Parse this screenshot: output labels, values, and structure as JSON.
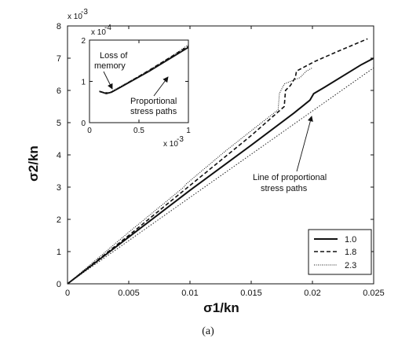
{
  "chart_data": {
    "main": {
      "type": "line",
      "xlabel": "σ1/kn",
      "ylabel": "σ2/kn",
      "xlim": [
        0,
        0.025
      ],
      "ylim": [
        0,
        0.008
      ],
      "xticks": [
        "0",
        "0.005",
        "0.01",
        "0.015",
        "0.02",
        "0.025"
      ],
      "yticks": [
        "0",
        "1",
        "2",
        "3",
        "4",
        "5",
        "6",
        "7",
        "8"
      ],
      "y_multiplier": "x 10",
      "y_exponent": "-3",
      "legend": {
        "placement": "lower-right",
        "entries": [
          "1.0",
          "1.8",
          "2.3"
        ]
      },
      "series": [
        {
          "name": "1.0",
          "style": "solid",
          "points": [
            [
              0,
              0
            ],
            [
              0.005,
              0.00145
            ],
            [
              0.01,
              0.0029
            ],
            [
              0.015,
              0.0043
            ],
            [
              0.0185,
              0.0053
            ],
            [
              0.0198,
              0.0057
            ],
            [
              0.0201,
              0.0059
            ],
            [
              0.021,
              0.0061
            ],
            [
              0.024,
              0.0068
            ],
            [
              0.025,
              0.007
            ]
          ]
        },
        {
          "name": "1.8",
          "style": "dashed",
          "points": [
            [
              0,
              0
            ],
            [
              0.005,
              0.0015
            ],
            [
              0.01,
              0.00305
            ],
            [
              0.015,
              0.0046
            ],
            [
              0.0177,
              0.0055
            ],
            [
              0.0178,
              0.006
            ],
            [
              0.0182,
              0.00615
            ],
            [
              0.0186,
              0.0064
            ],
            [
              0.0187,
              0.0066
            ],
            [
              0.0202,
              0.0069
            ],
            [
              0.022,
              0.0072
            ],
            [
              0.0245,
              0.0076
            ]
          ]
        },
        {
          "name": "2.3",
          "style": "dotted-solid",
          "points": [
            [
              0,
              0
            ],
            [
              0.005,
              0.0016
            ],
            [
              0.0095,
              0.003
            ],
            [
              0.0097,
              0.0031
            ],
            [
              0.013,
              0.00415
            ],
            [
              0.0172,
              0.0054
            ],
            [
              0.0173,
              0.0059
            ],
            [
              0.0177,
              0.0062
            ],
            [
              0.019,
              0.0064
            ],
            [
              0.0195,
              0.0066
            ],
            [
              0.02,
              0.0067
            ]
          ]
        },
        {
          "name": "proportional",
          "style": "dotted",
          "points": [
            [
              0,
              0
            ],
            [
              0.025,
              0.0067
            ]
          ]
        }
      ],
      "annotation": {
        "text_line1": "Line of proportional",
        "text_line2": "stress paths",
        "arrow_to": [
          0.0205,
          0.0055
        ]
      }
    },
    "inset": {
      "type": "line",
      "xlim": [
        0,
        0.001
      ],
      "ylim": [
        0,
        0.00025
      ],
      "xticks": [
        "0",
        "0.5",
        "1"
      ],
      "yticks": [
        "0",
        "1",
        "2"
      ],
      "x_multiplier": "x 10",
      "x_exponent": "-3",
      "y_multiplier": "x 10",
      "y_exponent": "-4",
      "series": [
        {
          "name": "1.0",
          "style": "solid",
          "points": [
            [
              0.0001,
              9.45e-05
            ],
            [
              0.00013,
              9.2e-05
            ],
            [
              0.00017,
              8.8e-05
            ],
            [
              0.00022,
              9.2e-05
            ],
            [
              0.0003,
              0.000105
            ],
            [
              0.0006,
              0.000155
            ],
            [
              0.001,
              0.000228
            ]
          ]
        },
        {
          "name": "1.8",
          "style": "dashed",
          "points": [
            [
              0.0001,
              9.5e-05
            ],
            [
              0.00015,
              9.1e-05
            ],
            [
              0.0002,
              9e-05
            ],
            [
              0.00025,
              9.7e-05
            ],
            [
              0.0006,
              0.000158
            ],
            [
              0.001,
              0.000232
            ]
          ]
        },
        {
          "name": "2.3",
          "style": "dotted-solid",
          "points": [
            [
              0.0001,
              9.6e-05
            ],
            [
              0.00016,
              9e-05
            ],
            [
              0.0002,
              9.1e-05
            ],
            [
              0.0005,
              0.000141
            ],
            [
              0.0008,
              0.000195
            ],
            [
              0.001,
              0.000236
            ]
          ]
        }
      ],
      "annotations": [
        {
          "line1": "Loss of",
          "line2": "memory"
        },
        {
          "line1": "Proportional",
          "line2": "stress paths"
        }
      ]
    },
    "caption": "(a)"
  }
}
